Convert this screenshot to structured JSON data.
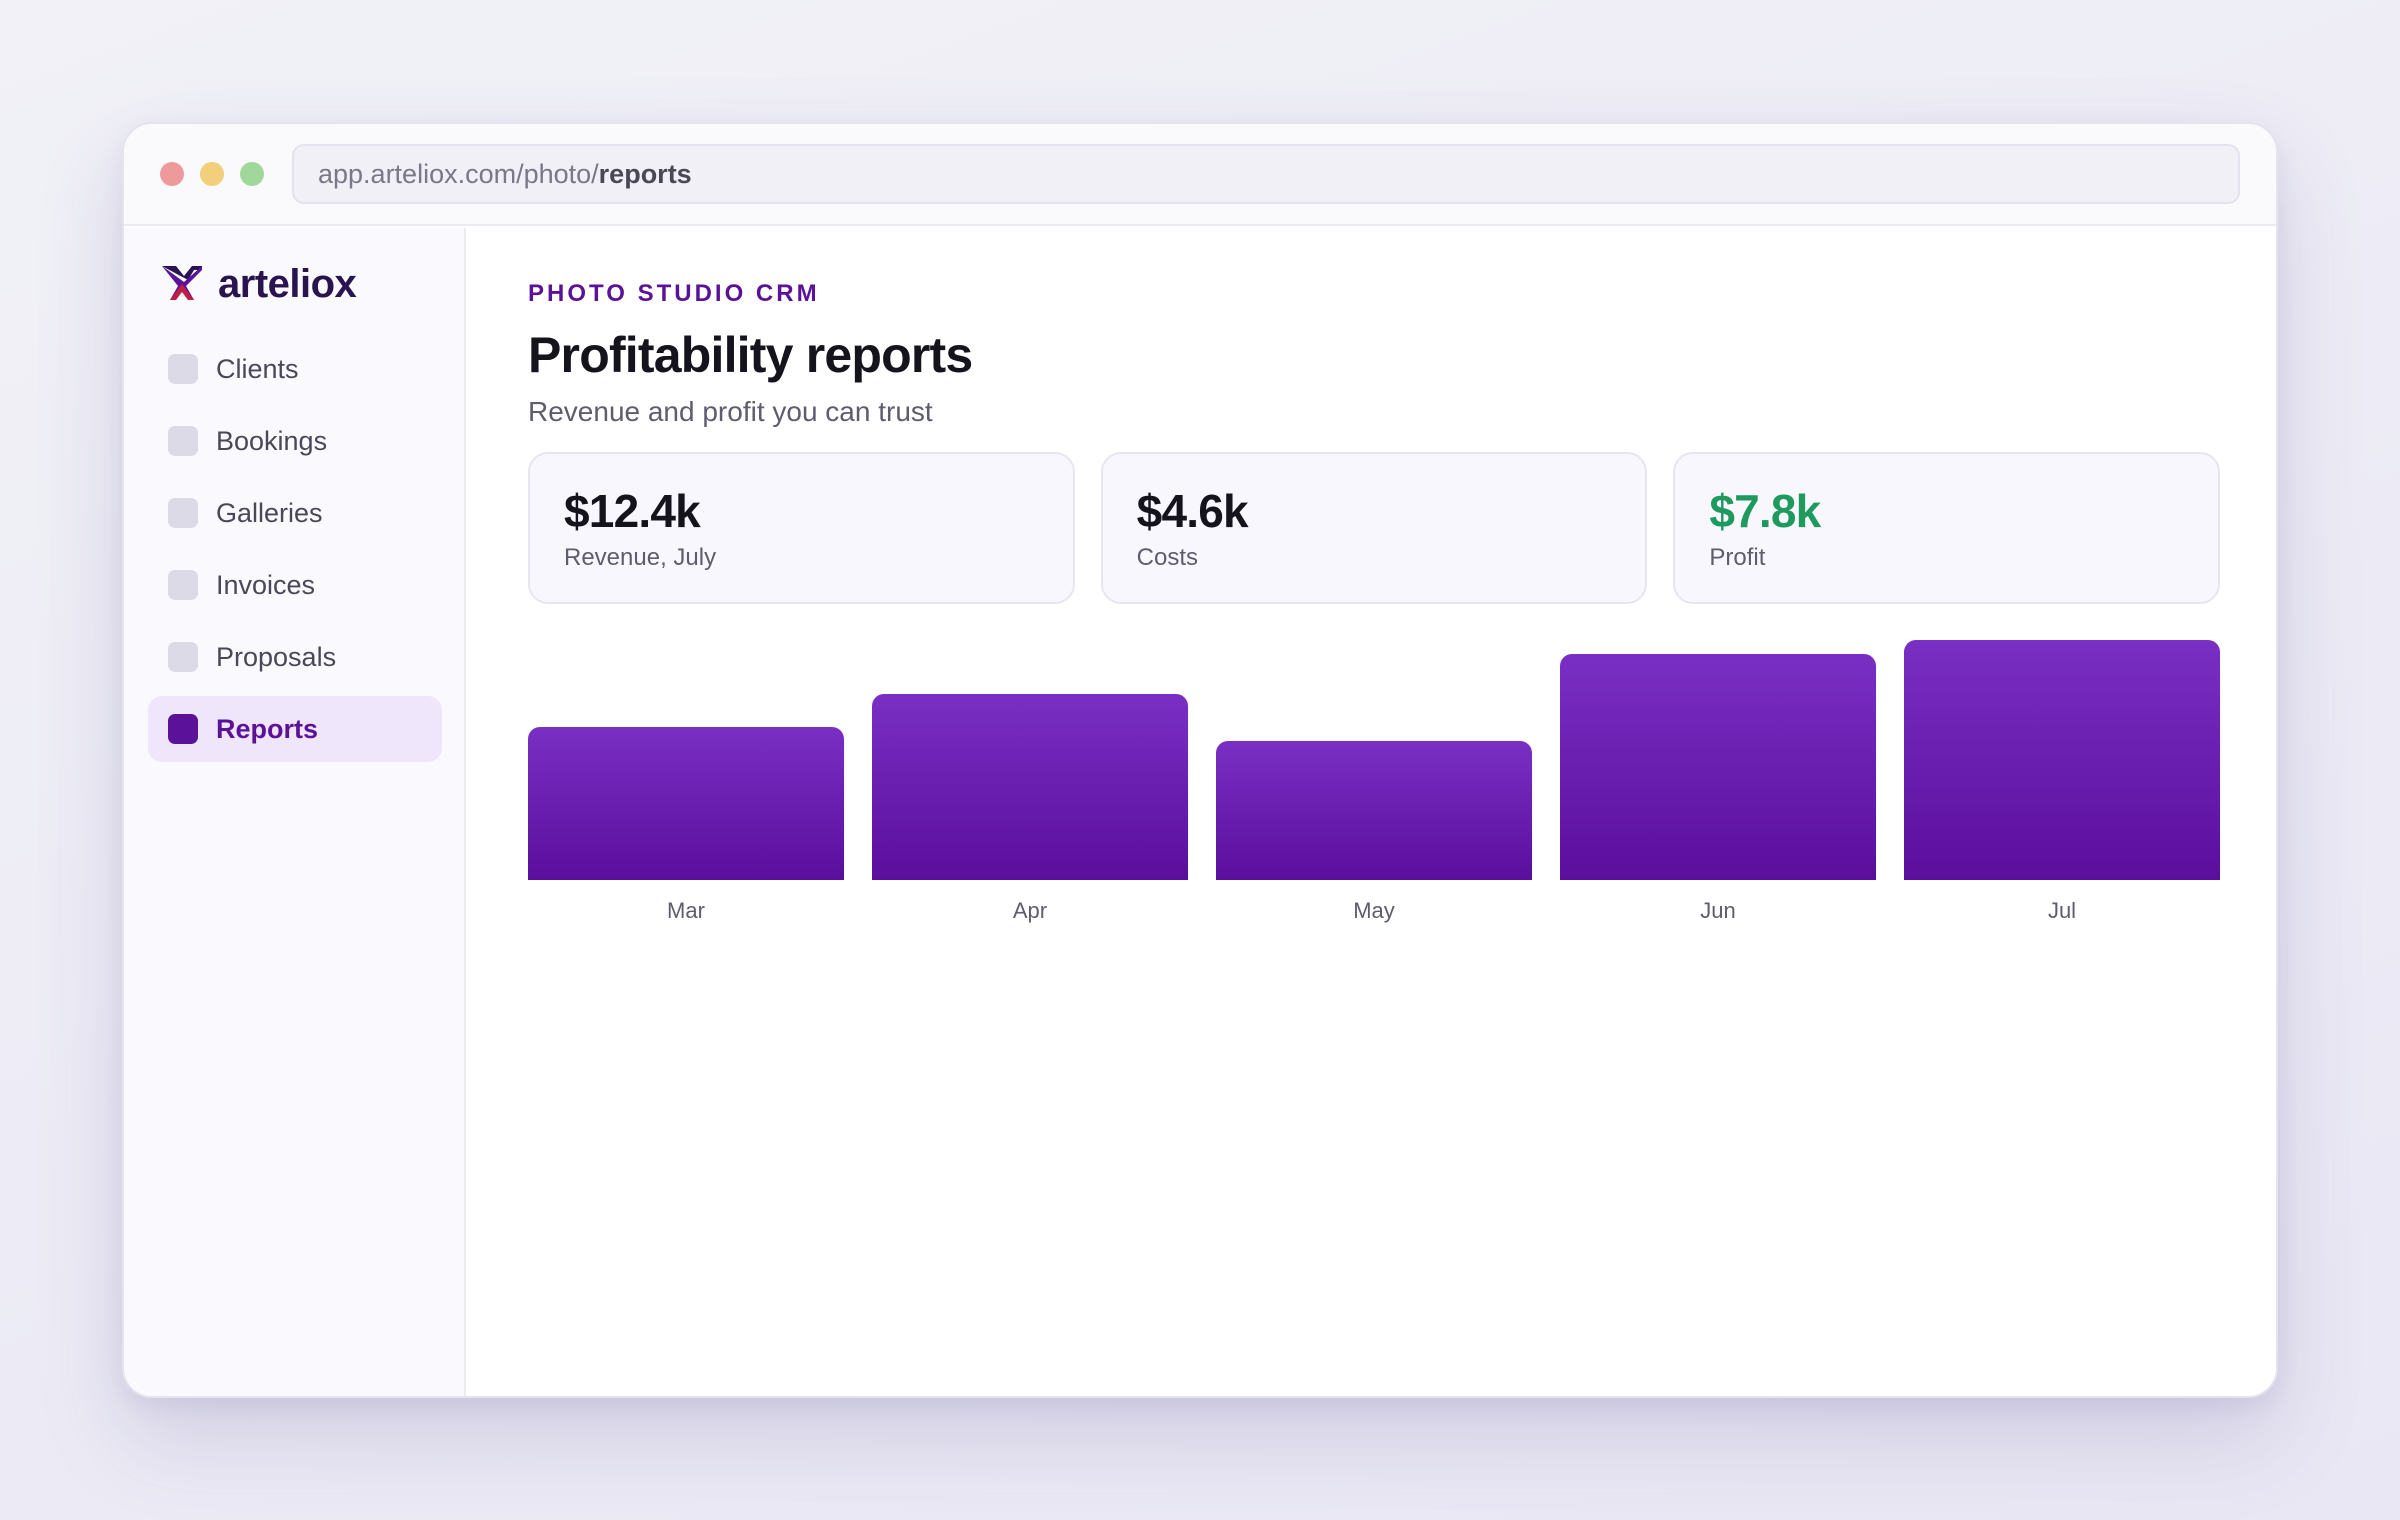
{
  "browser": {
    "url_prefix": "app.arteliox.com/photo/",
    "url_path": "reports"
  },
  "brand": {
    "name": "arteliox"
  },
  "sidebar": {
    "items": [
      {
        "label": "Clients",
        "active": false
      },
      {
        "label": "Bookings",
        "active": false
      },
      {
        "label": "Galleries",
        "active": false
      },
      {
        "label": "Invoices",
        "active": false
      },
      {
        "label": "Proposals",
        "active": false
      },
      {
        "label": "Reports",
        "active": true
      }
    ]
  },
  "header": {
    "eyebrow": "PHOTO STUDIO CRM",
    "title": "Profitability reports",
    "subtitle": "Revenue and profit you can trust"
  },
  "stats": [
    {
      "value": "$12.4k",
      "label": "Revenue, July",
      "color": "#15131c"
    },
    {
      "value": "$4.6k",
      "label": "Costs",
      "color": "#15131c"
    },
    {
      "value": "$7.8k",
      "label": "Profit",
      "color": "#1f9a5e"
    }
  ],
  "colors": {
    "accent": "#5b1298",
    "bar_top": "#7a2fc4",
    "bar_bottom": "#5b0e9c",
    "profit": "#1f9a5e"
  },
  "chart_data": {
    "type": "bar",
    "categories": [
      "Mar",
      "Apr",
      "May",
      "Jun",
      "Jul"
    ],
    "values": [
      7.9,
      9.6,
      7.2,
      11.7,
      12.4
    ],
    "ylim": [
      0,
      12.4
    ],
    "grid": false,
    "legend": "none"
  }
}
